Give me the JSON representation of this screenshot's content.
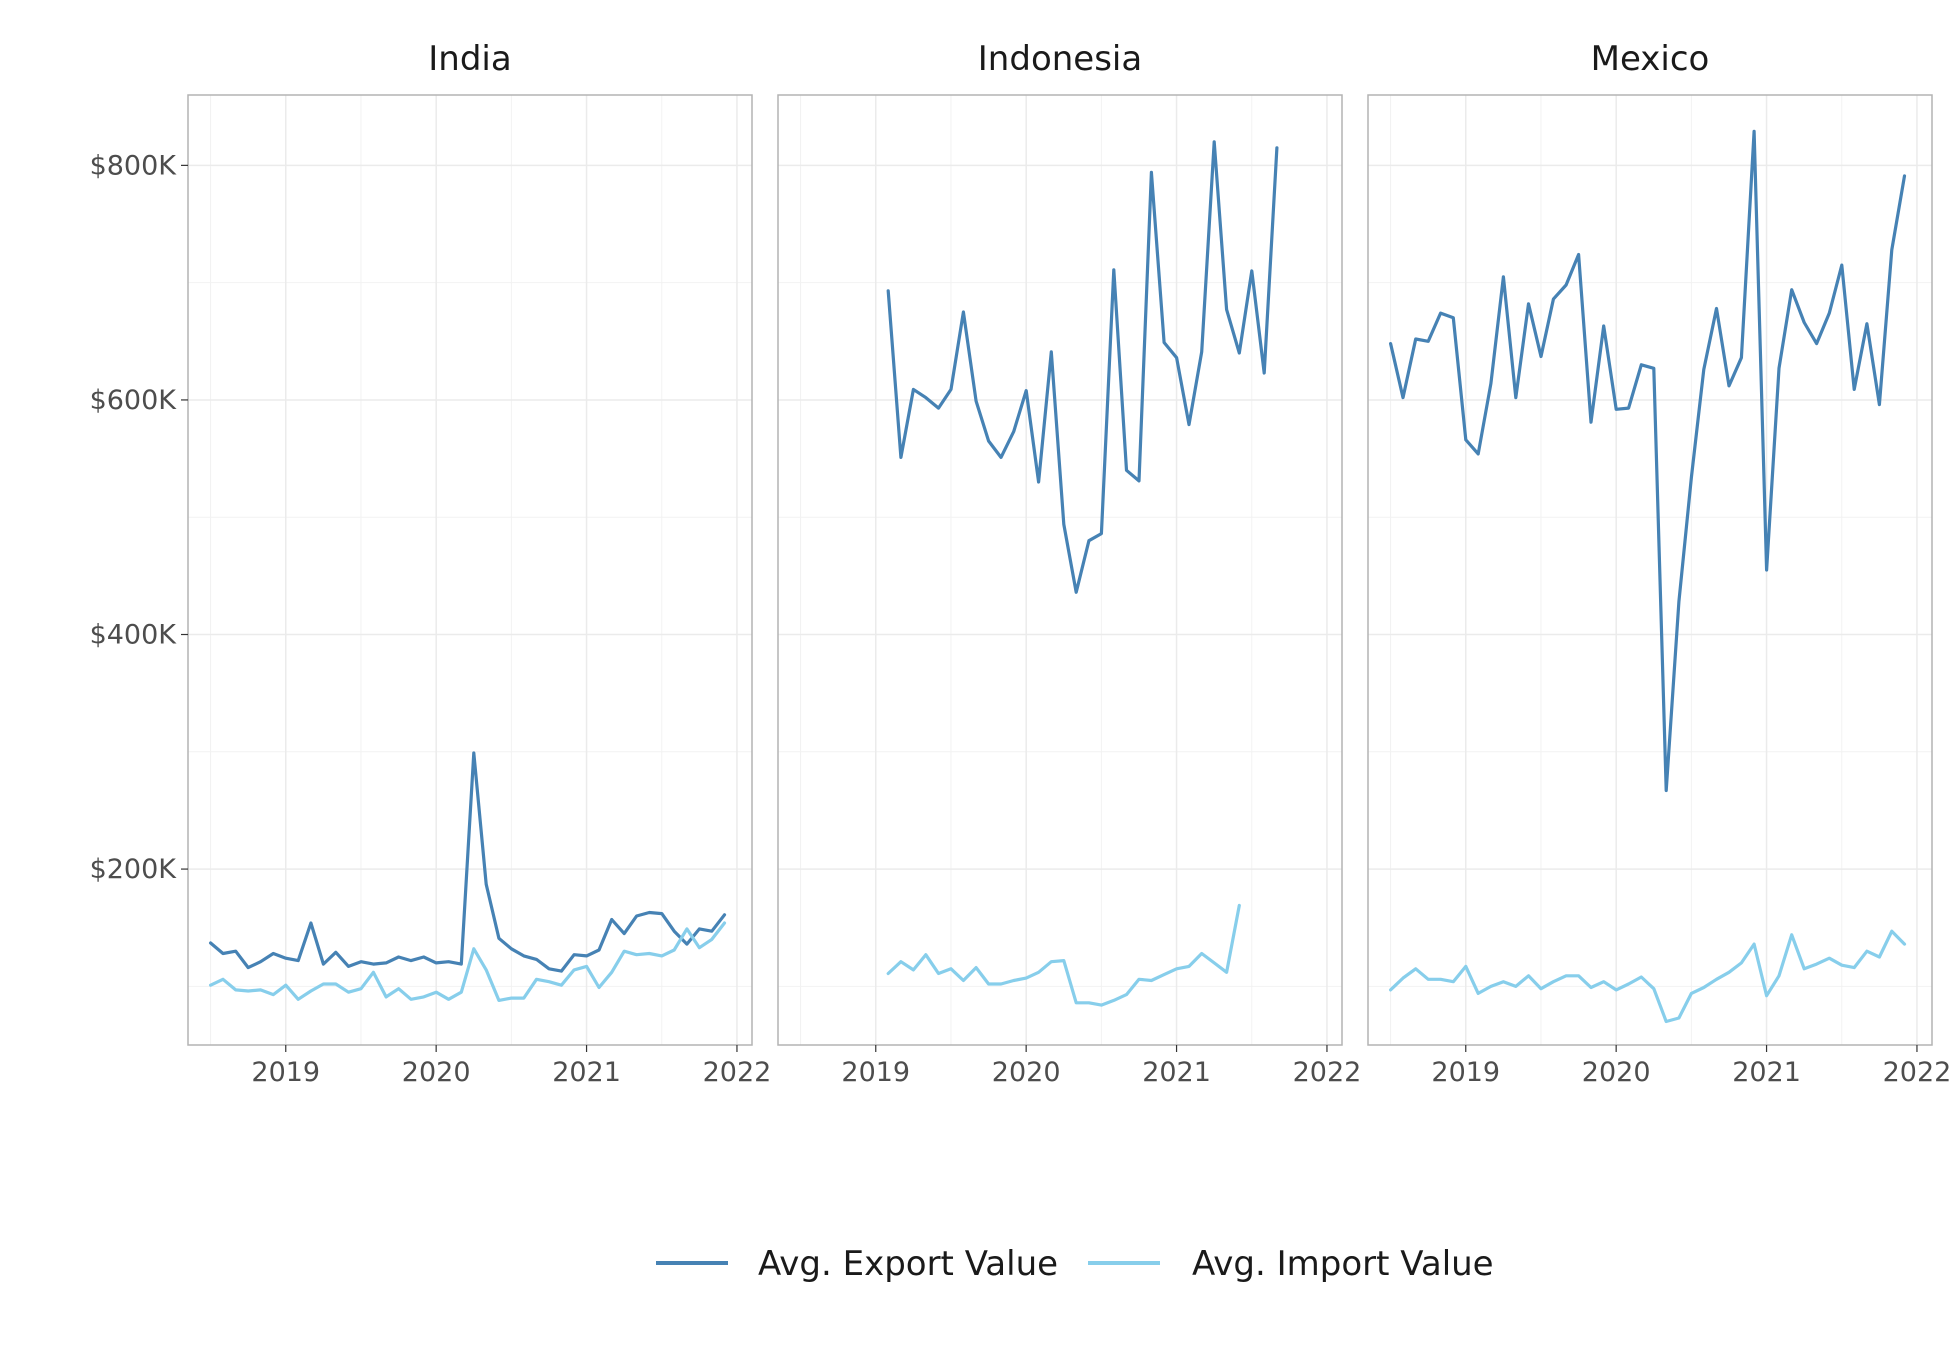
{
  "chart_data": {
    "type": "line",
    "x_ticks": [
      "2019",
      "2020",
      "2021",
      "2022"
    ],
    "y_ticks": [
      "$200K",
      "$400K",
      "$600K",
      "$800K"
    ],
    "y_tick_values": [
      200000,
      400000,
      600000,
      800000
    ],
    "ylim": [
      50000,
      860000
    ],
    "xlim": [
      2018.35,
      2022.1
    ],
    "grid": true,
    "legend_position": "bottom",
    "series_meta": [
      {
        "name": "Avg. Export Value",
        "color": "#4682b4"
      },
      {
        "name": "Avg. Import Value",
        "color": "#87ceeb"
      }
    ],
    "panels": [
      {
        "title": "India",
        "series": [
          {
            "name": "Avg. Export Value",
            "x": [
              2018.5,
              2018.583,
              2018.667,
              2018.75,
              2018.833,
              2018.917,
              2019.0,
              2019.083,
              2019.167,
              2019.25,
              2019.333,
              2019.417,
              2019.5,
              2019.583,
              2019.667,
              2019.75,
              2019.833,
              2019.917,
              2020.0,
              2020.083,
              2020.167,
              2020.25,
              2020.333,
              2020.417,
              2020.5,
              2020.583,
              2020.667,
              2020.75,
              2020.833,
              2020.917,
              2021.0,
              2021.083,
              2021.167,
              2021.25,
              2021.333,
              2021.417,
              2021.5,
              2021.583,
              2021.667,
              2021.75,
              2021.833,
              2021.917
            ],
            "values": [
              137000,
              128000,
              130000,
              116000,
              121000,
              128000,
              124000,
              122000,
              154000,
              119000,
              129000,
              117000,
              121000,
              119000,
              120000,
              125000,
              122000,
              125000,
              120000,
              121000,
              119000,
              299000,
              187000,
              141000,
              132000,
              126000,
              123000,
              115000,
              113000,
              127000,
              126000,
              131000,
              157000,
              145000,
              160000,
              163000,
              162000,
              147000,
              136000,
              149000,
              147000,
              161000
            ]
          },
          {
            "name": "Avg. Import Value",
            "x": [
              2018.5,
              2018.583,
              2018.667,
              2018.75,
              2018.833,
              2018.917,
              2019.0,
              2019.083,
              2019.167,
              2019.25,
              2019.333,
              2019.417,
              2019.5,
              2019.583,
              2019.667,
              2019.75,
              2019.833,
              2019.917,
              2020.0,
              2020.083,
              2020.167,
              2020.25,
              2020.333,
              2020.417,
              2020.5,
              2020.583,
              2020.667,
              2020.75,
              2020.833,
              2020.917,
              2021.0,
              2021.083,
              2021.167,
              2021.25,
              2021.333,
              2021.417,
              2021.5,
              2021.583,
              2021.667,
              2021.75,
              2021.833,
              2021.917
            ],
            "values": [
              101000,
              106000,
              97000,
              96000,
              97000,
              93000,
              101000,
              89000,
              96000,
              102000,
              102000,
              95000,
              98000,
              112000,
              91000,
              98000,
              89000,
              91000,
              95000,
              89000,
              95000,
              132000,
              114000,
              88000,
              90000,
              90000,
              106000,
              104000,
              101000,
              114000,
              117000,
              99000,
              112000,
              130000,
              127000,
              128000,
              126000,
              131000,
              149000,
              133000,
              140000,
              154000
            ]
          }
        ]
      },
      {
        "title": "Indonesia",
        "series": [
          {
            "name": "Avg. Export Value",
            "x": [
              2019.083,
              2019.167,
              2019.25,
              2019.333,
              2019.417,
              2019.5,
              2019.583,
              2019.667,
              2019.75,
              2019.833,
              2019.917,
              2020.0,
              2020.083,
              2020.167,
              2020.25,
              2020.333,
              2020.417,
              2020.5,
              2020.583,
              2020.667,
              2020.75,
              2020.833,
              2020.917,
              2021.0,
              2021.083,
              2021.167,
              2021.25,
              2021.333,
              2021.417,
              2021.5,
              2021.583,
              2021.667
            ],
            "values": [
              693000,
              551000,
              609000,
              602000,
              593000,
              609000,
              675000,
              599000,
              565000,
              551000,
              573000,
              608000,
              530000,
              641000,
              494000,
              436000,
              480000,
              486000,
              711000,
              540000,
              531000,
              794000,
              649000,
              636000,
              579000,
              641000,
              820000,
              677000,
              640000,
              710000,
              623000,
              815000
            ]
          },
          {
            "name": "Avg. Import Value",
            "x": [
              2019.083,
              2019.167,
              2019.25,
              2019.333,
              2019.417,
              2019.5,
              2019.583,
              2019.667,
              2019.75,
              2019.833,
              2019.917,
              2020.0,
              2020.083,
              2020.167,
              2020.25,
              2020.333,
              2020.417,
              2020.5,
              2020.583,
              2020.667,
              2020.75,
              2020.833,
              2020.917,
              2021.0,
              2021.083,
              2021.167,
              2021.25,
              2021.333,
              2021.417
            ],
            "values": [
              111000,
              121000,
              114000,
              127000,
              111000,
              115000,
              105000,
              116000,
              102000,
              102000,
              105000,
              107000,
              112000,
              121000,
              122000,
              86000,
              86000,
              84000,
              88000,
              93000,
              106000,
              105000,
              110000,
              115000,
              117000,
              128000,
              120000,
              112000,
              169000
            ]
          }
        ]
      },
      {
        "title": "Mexico",
        "series": [
          {
            "name": "Avg. Export Value",
            "x": [
              2018.5,
              2018.583,
              2018.667,
              2018.75,
              2018.833,
              2018.917,
              2019.0,
              2019.083,
              2019.167,
              2019.25,
              2019.333,
              2019.417,
              2019.5,
              2019.583,
              2019.667,
              2019.75,
              2019.833,
              2019.917,
              2020.0,
              2020.083,
              2020.167,
              2020.25,
              2020.333,
              2020.417,
              2020.5,
              2020.583,
              2020.667,
              2020.75,
              2020.833,
              2020.917,
              2021.0,
              2021.083,
              2021.167,
              2021.25,
              2021.333,
              2021.417,
              2021.5,
              2021.583,
              2021.667,
              2021.75,
              2021.833,
              2021.917
            ],
            "values": [
              648000,
              602000,
              652000,
              650000,
              674000,
              670000,
              566000,
              554000,
              614000,
              705000,
              602000,
              682000,
              637000,
              686000,
              698000,
              724000,
              581000,
              663000,
              592000,
              593000,
              630000,
              627000,
              267000,
              428000,
              534000,
              626000,
              678000,
              612000,
              636000,
              829000,
              455000,
              627000,
              694000,
              666000,
              648000,
              674000,
              715000,
              609000,
              665000,
              596000,
              728000,
              791000
            ]
          },
          {
            "name": "Avg. Import Value",
            "x": [
              2018.5,
              2018.583,
              2018.667,
              2018.75,
              2018.833,
              2018.917,
              2019.0,
              2019.083,
              2019.167,
              2019.25,
              2019.333,
              2019.417,
              2019.5,
              2019.583,
              2019.667,
              2019.75,
              2019.833,
              2019.917,
              2020.0,
              2020.083,
              2020.167,
              2020.25,
              2020.333,
              2020.417,
              2020.5,
              2020.583,
              2020.667,
              2020.75,
              2020.833,
              2020.917,
              2021.0,
              2021.083,
              2021.167,
              2021.25,
              2021.333,
              2021.417,
              2021.5,
              2021.583,
              2021.667,
              2021.75,
              2021.833,
              2021.917
            ],
            "values": [
              97000,
              107000,
              115000,
              106000,
              106000,
              104000,
              117000,
              94000,
              100000,
              104000,
              100000,
              109000,
              98000,
              104000,
              109000,
              109000,
              99000,
              104000,
              97000,
              102000,
              108000,
              98000,
              70000,
              73000,
              94000,
              99000,
              106000,
              112000,
              120000,
              136000,
              92000,
              109000,
              144000,
              115000,
              119000,
              124000,
              118000,
              116000,
              130000,
              125000,
              147000,
              136000
            ]
          }
        ]
      }
    ]
  }
}
